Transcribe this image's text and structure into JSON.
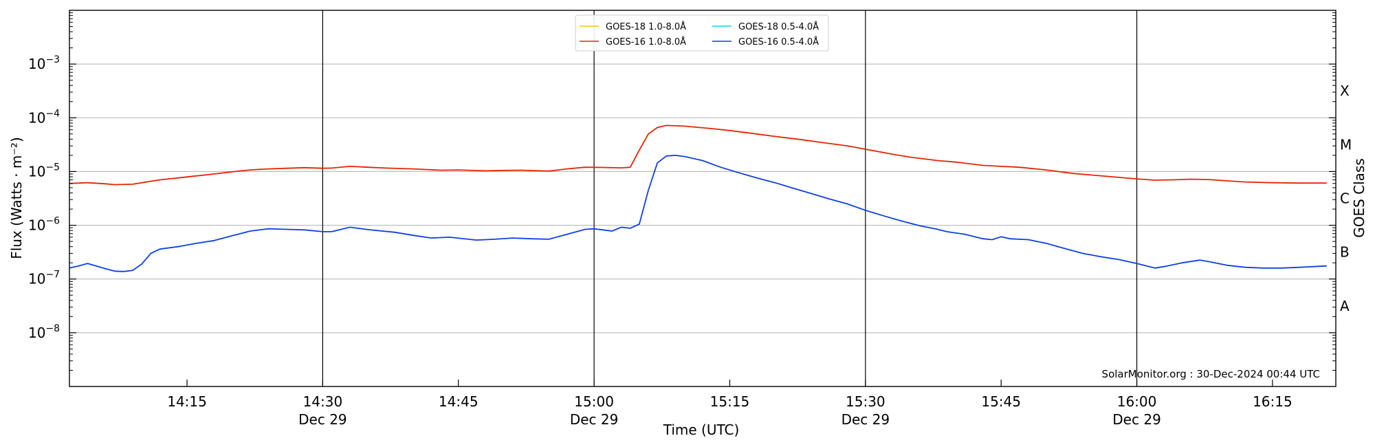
{
  "chart_data": {
    "type": "line",
    "xlabel": "Time (UTC)",
    "ylabel": "Flux (Watts · m⁻²)",
    "ylabel_right": "GOES Class",
    "y_scale": "log",
    "ylim": [
      1e-09,
      0.01
    ],
    "xlim": [
      "2024-12-29 14:02",
      "2024-12-29 16:22"
    ],
    "grid": "horizontal at decades",
    "legend_position": "top-center",
    "y_ticks": [
      {
        "value": 1e-08,
        "mantissa": "10",
        "exponent": "−8"
      },
      {
        "value": 1e-07,
        "mantissa": "10",
        "exponent": "−7"
      },
      {
        "value": 1e-06,
        "mantissa": "10",
        "exponent": "−6"
      },
      {
        "value": 1e-05,
        "mantissa": "10",
        "exponent": "−5"
      },
      {
        "value": 0.0001,
        "mantissa": "10",
        "exponent": "−4"
      },
      {
        "value": 0.001,
        "mantissa": "10",
        "exponent": "−3"
      }
    ],
    "x_ticks": [
      {
        "time": "14:15",
        "label": "14:15",
        "date": ""
      },
      {
        "time": "14:30",
        "label": "14:30",
        "date": "Dec 29"
      },
      {
        "time": "14:45",
        "label": "14:45",
        "date": ""
      },
      {
        "time": "15:00",
        "label": "15:00",
        "date": "Dec 29"
      },
      {
        "time": "15:15",
        "label": "15:15",
        "date": ""
      },
      {
        "time": "15:30",
        "label": "15:30",
        "date": "Dec 29"
      },
      {
        "time": "15:45",
        "label": "15:45",
        "date": ""
      },
      {
        "time": "16:00",
        "label": "16:00",
        "date": "Dec 29"
      },
      {
        "time": "16:15",
        "label": "16:15",
        "date": ""
      }
    ],
    "half_hour_lines": [
      "14:30",
      "15:00",
      "15:30",
      "16:00"
    ],
    "goes_classes": [
      {
        "label": "A",
        "value": 3.16e-08
      },
      {
        "label": "B",
        "value": 3.16e-07
      },
      {
        "label": "C",
        "value": 3.16e-06
      },
      {
        "label": "M",
        "value": 3.16e-05
      },
      {
        "label": "X",
        "value": 0.000316
      }
    ],
    "series": [
      {
        "name": "GOES-18 1.0-8.0Å",
        "color": "#f5c400",
        "points": []
      },
      {
        "name": "GOES-18 0.5-4.0Å",
        "color": "#00d8e8",
        "points": []
      },
      {
        "name": "GOES-16 1.0-8.0Å",
        "color": "#e52400",
        "points": [
          [
            "14:02",
            6e-06
          ],
          [
            "14:04",
            6.2e-06
          ],
          [
            "14:06",
            5.9e-06
          ],
          [
            "14:07",
            5.7e-06
          ],
          [
            "14:09",
            5.8e-06
          ],
          [
            "14:10",
            6.2e-06
          ],
          [
            "14:12",
            7e-06
          ],
          [
            "14:14",
            7.6e-06
          ],
          [
            "14:16",
            8.3e-06
          ],
          [
            "14:18",
            9e-06
          ],
          [
            "14:20",
            9.9e-06
          ],
          [
            "14:22",
            1.07e-05
          ],
          [
            "14:24",
            1.12e-05
          ],
          [
            "14:26",
            1.15e-05
          ],
          [
            "14:28",
            1.18e-05
          ],
          [
            "14:30",
            1.15e-05
          ],
          [
            "14:31",
            1.16e-05
          ],
          [
            "14:33",
            1.25e-05
          ],
          [
            "14:35",
            1.2e-05
          ],
          [
            "14:37",
            1.16e-05
          ],
          [
            "14:40",
            1.12e-05
          ],
          [
            "14:43",
            1.06e-05
          ],
          [
            "14:45",
            1.07e-05
          ],
          [
            "14:48",
            1.03e-05
          ],
          [
            "14:50",
            1.05e-05
          ],
          [
            "14:52",
            1.06e-05
          ],
          [
            "14:55",
            1.02e-05
          ],
          [
            "14:57",
            1.12e-05
          ],
          [
            "14:59",
            1.2e-05
          ],
          [
            "15:01",
            1.19e-05
          ],
          [
            "15:03",
            1.17e-05
          ],
          [
            "15:04",
            1.2e-05
          ],
          [
            "15:05",
            2.5e-05
          ],
          [
            "15:06",
            5e-05
          ],
          [
            "15:07",
            6.6e-05
          ],
          [
            "15:08",
            7.2e-05
          ],
          [
            "15:10",
            7e-05
          ],
          [
            "15:13",
            6.3e-05
          ],
          [
            "15:15",
            5.8e-05
          ],
          [
            "15:18",
            5e-05
          ],
          [
            "15:20",
            4.5e-05
          ],
          [
            "15:23",
            3.9e-05
          ],
          [
            "15:25",
            3.5e-05
          ],
          [
            "15:28",
            3e-05
          ],
          [
            "15:30",
            2.6e-05
          ],
          [
            "15:33",
            2.1e-05
          ],
          [
            "15:35",
            1.85e-05
          ],
          [
            "15:38",
            1.6e-05
          ],
          [
            "15:40",
            1.5e-05
          ],
          [
            "15:43",
            1.3e-05
          ],
          [
            "15:45",
            1.25e-05
          ],
          [
            "15:47",
            1.2e-05
          ],
          [
            "15:50",
            1.07e-05
          ],
          [
            "15:53",
            9.2e-06
          ],
          [
            "15:55",
            8.6e-06
          ],
          [
            "15:58",
            7.8e-06
          ],
          [
            "16:00",
            7.3e-06
          ],
          [
            "16:02",
            6.9e-06
          ],
          [
            "16:04",
            7e-06
          ],
          [
            "16:06",
            7.2e-06
          ],
          [
            "16:08",
            7.1e-06
          ],
          [
            "16:10",
            6.7e-06
          ],
          [
            "16:12",
            6.4e-06
          ],
          [
            "16:15",
            6.2e-06
          ],
          [
            "16:18",
            6.1e-06
          ],
          [
            "16:21",
            6.1e-06
          ]
        ]
      },
      {
        "name": "GOES-16 0.5-4.0Å",
        "color": "#0b3fe6",
        "points": [
          [
            "14:02",
            1.6e-07
          ],
          [
            "14:03",
            1.75e-07
          ],
          [
            "14:04",
            1.95e-07
          ],
          [
            "14:06",
            1.55e-07
          ],
          [
            "14:07",
            1.4e-07
          ],
          [
            "14:08",
            1.38e-07
          ],
          [
            "14:09",
            1.45e-07
          ],
          [
            "14:10",
            1.9e-07
          ],
          [
            "14:11",
            3e-07
          ],
          [
            "14:12",
            3.6e-07
          ],
          [
            "14:14",
            4e-07
          ],
          [
            "14:16",
            4.6e-07
          ],
          [
            "14:18",
            5.2e-07
          ],
          [
            "14:20",
            6.4e-07
          ],
          [
            "14:22",
            7.8e-07
          ],
          [
            "14:24",
            8.6e-07
          ],
          [
            "14:26",
            8.4e-07
          ],
          [
            "14:28",
            8.2e-07
          ],
          [
            "14:30",
            7.6e-07
          ],
          [
            "14:31",
            7.6e-07
          ],
          [
            "14:33",
            9.2e-07
          ],
          [
            "14:35",
            8.3e-07
          ],
          [
            "14:38",
            7.4e-07
          ],
          [
            "14:40",
            6.5e-07
          ],
          [
            "14:42",
            5.8e-07
          ],
          [
            "14:44",
            6e-07
          ],
          [
            "14:47",
            5.3e-07
          ],
          [
            "14:49",
            5.5e-07
          ],
          [
            "14:51",
            5.8e-07
          ],
          [
            "14:53",
            5.6e-07
          ],
          [
            "14:55",
            5.5e-07
          ],
          [
            "14:57",
            6.8e-07
          ],
          [
            "14:59",
            8.4e-07
          ],
          [
            "15:00",
            8.6e-07
          ],
          [
            "15:02",
            7.8e-07
          ],
          [
            "15:03",
            9.2e-07
          ],
          [
            "15:04",
            8.8e-07
          ],
          [
            "15:05",
            1.05e-06
          ],
          [
            "15:06",
            4.5e-06
          ],
          [
            "15:07",
            1.45e-05
          ],
          [
            "15:08",
            1.95e-05
          ],
          [
            "15:09",
            2e-05
          ],
          [
            "15:10",
            1.9e-05
          ],
          [
            "15:12",
            1.6e-05
          ],
          [
            "15:14",
            1.2e-05
          ],
          [
            "15:16",
            9.5e-06
          ],
          [
            "15:18",
            7.6e-06
          ],
          [
            "15:20",
            6.2e-06
          ],
          [
            "15:22",
            4.9e-06
          ],
          [
            "15:24",
            3.9e-06
          ],
          [
            "15:26",
            3.1e-06
          ],
          [
            "15:28",
            2.5e-06
          ],
          [
            "15:30",
            1.9e-06
          ],
          [
            "15:32",
            1.5e-06
          ],
          [
            "15:34",
            1.2e-06
          ],
          [
            "15:36",
            9.8e-07
          ],
          [
            "15:38",
            8.4e-07
          ],
          [
            "15:39",
            7.6e-07
          ],
          [
            "15:41",
            6.8e-07
          ],
          [
            "15:43",
            5.6e-07
          ],
          [
            "15:44",
            5.4e-07
          ],
          [
            "15:45",
            6.1e-07
          ],
          [
            "15:46",
            5.6e-07
          ],
          [
            "15:48",
            5.4e-07
          ],
          [
            "15:50",
            4.6e-07
          ],
          [
            "15:52",
            3.7e-07
          ],
          [
            "15:54",
            3e-07
          ],
          [
            "15:56",
            2.6e-07
          ],
          [
            "15:58",
            2.3e-07
          ],
          [
            "16:00",
            1.95e-07
          ],
          [
            "16:02",
            1.6e-07
          ],
          [
            "16:03",
            1.7e-07
          ],
          [
            "16:05",
            2e-07
          ],
          [
            "16:07",
            2.25e-07
          ],
          [
            "16:08",
            2.1e-07
          ],
          [
            "16:10",
            1.8e-07
          ],
          [
            "16:12",
            1.65e-07
          ],
          [
            "16:14",
            1.6e-07
          ],
          [
            "16:16",
            1.6e-07
          ],
          [
            "16:18",
            1.65e-07
          ],
          [
            "16:21",
            1.75e-07
          ]
        ]
      }
    ],
    "annotation": "SolarMonitor.org : 30-Dec-2024 00:44 UTC"
  }
}
